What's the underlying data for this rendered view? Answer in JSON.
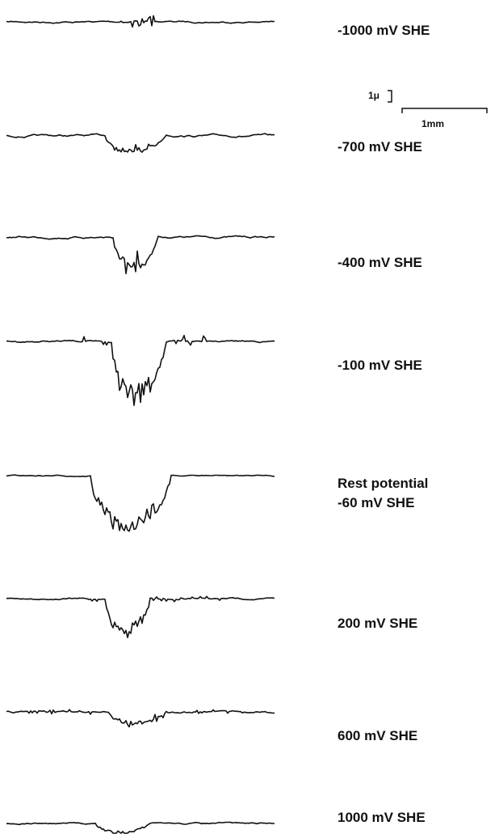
{
  "traces": [
    {
      "label": [
        "-1000 mV SHE"
      ]
    },
    {
      "label": [
        "-700 mV SHE"
      ]
    },
    {
      "label": [
        "-400 mV SHE"
      ]
    },
    {
      "label": [
        "-100 mV SHE"
      ]
    },
    {
      "label": [
        "Rest potential",
        "-60 mV SHE"
      ]
    },
    {
      "label": [
        "200 mV SHE"
      ]
    },
    {
      "label": [
        "600 mV SHE"
      ]
    },
    {
      "label": [
        "1000 mV SHE"
      ]
    }
  ],
  "scale_bar": {
    "vertical": "1μ",
    "horizontal": "1mm"
  }
}
